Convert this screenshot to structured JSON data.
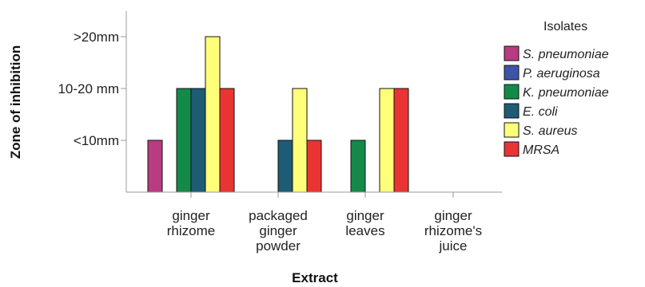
{
  "chart_data": {
    "type": "bar",
    "xlabel": "Extract",
    "ylabel": "Zone of inhibition",
    "y_levels": [
      "<10mm",
      "10-20 mm",
      ">20mm"
    ],
    "ylim": [
      0,
      3.4
    ],
    "categories": [
      [
        "ginger",
        "rhizome"
      ],
      [
        "packaged",
        "ginger",
        "powder"
      ],
      [
        "ginger",
        "leaves"
      ],
      [
        "ginger",
        "rhizome's",
        "juice"
      ]
    ],
    "legend_title": "Isolates",
    "legend_position": "right",
    "series": [
      {
        "name": "S. pneumoniae",
        "color": "#b83c82",
        "values": [
          1,
          null,
          null,
          null
        ]
      },
      {
        "name": "P. aeruginosa",
        "color": "#3d55a8",
        "values": [
          null,
          null,
          null,
          null
        ]
      },
      {
        "name": "K. pneumoniae",
        "color": "#138a4a",
        "values": [
          2,
          null,
          1,
          null
        ]
      },
      {
        "name": "E. coli",
        "color": "#1d5c74",
        "values": [
          2,
          1,
          null,
          null
        ]
      },
      {
        "name": "S. aureus",
        "color": "#ffff7a",
        "values": [
          3,
          2,
          2,
          null
        ]
      },
      {
        "name": "MRSA",
        "color": "#ea3434",
        "values": [
          2,
          1,
          2,
          null
        ]
      }
    ],
    "grid": false
  }
}
